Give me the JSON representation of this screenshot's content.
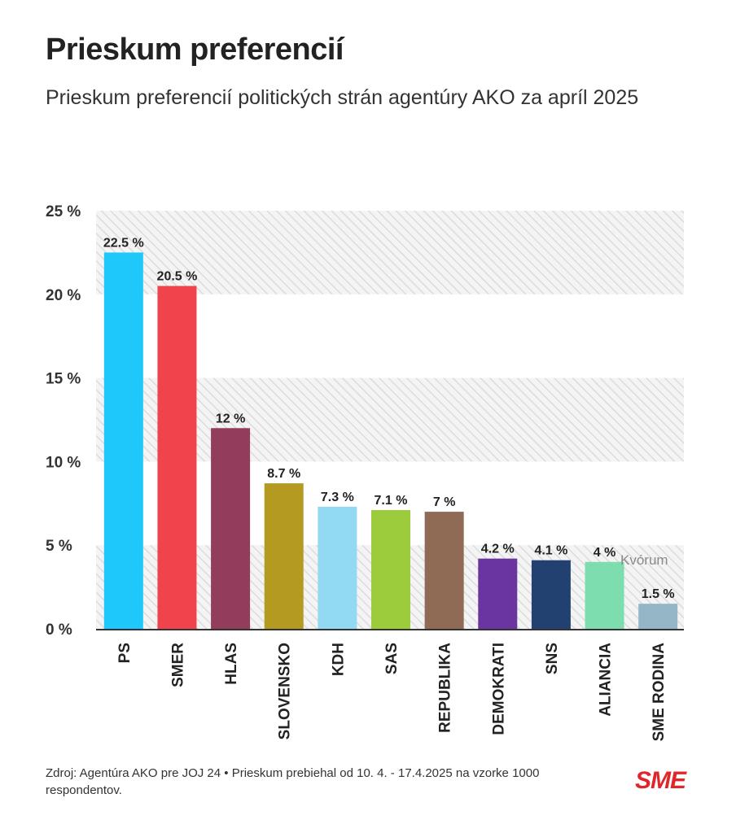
{
  "header": {
    "title": "Prieskum preferencií",
    "subtitle": "Prieskum preferencií politických strán agentúry AKO za apríl 2025"
  },
  "chart_data": {
    "type": "bar",
    "title": "Prieskum preferencií",
    "subtitle": "Prieskum preferencií politických strán agentúry AKO za apríl 2025",
    "categories": [
      "PS",
      "SMER",
      "HLAS",
      "SLOVENSKO",
      "KDH",
      "SAS",
      "REPUBLIKA",
      "DEMOKRATI",
      "SNS",
      "ALIANCIA",
      "SME RODINA"
    ],
    "values": [
      22.5,
      20.5,
      12,
      8.7,
      7.3,
      7.1,
      7,
      4.2,
      4.1,
      4,
      1.5
    ],
    "value_labels": [
      "22.5 %",
      "20.5 %",
      "12 %",
      "8.7 %",
      "7.3 %",
      "7.1 %",
      "7 %",
      "4.2 %",
      "4.1 %",
      "4 %",
      "1.5 %"
    ],
    "colors": [
      "#1ec8fa",
      "#f0434b",
      "#923d5c",
      "#b59a22",
      "#92d9f4",
      "#9ccb3c",
      "#8f6b55",
      "#6a35a0",
      "#224170",
      "#7dddaf",
      "#95b6c6"
    ],
    "ylim": [
      0,
      25
    ],
    "yticks": [
      0,
      5,
      10,
      15,
      20,
      25
    ],
    "ytick_labels": [
      "0 %",
      "5 %",
      "10 %",
      "15 %",
      "20 %",
      "25 %"
    ],
    "threshold": {
      "value": 5,
      "label": "Kvórum"
    },
    "xlabel": "",
    "ylabel": ""
  },
  "footer": {
    "source": "Zdroj: Agentúra AKO pre JOJ 24 • Prieskum prebiehal od 10. 4. - 17.4.2025 na vzorke 1000 respondentov.",
    "logo": "SME"
  }
}
